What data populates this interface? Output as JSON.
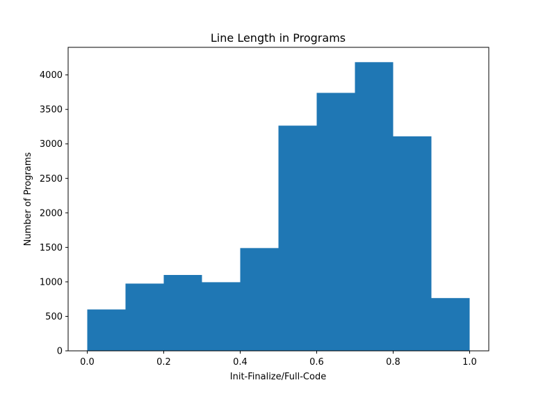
{
  "chart_data": {
    "type": "bar",
    "title": "Line Length in Programs",
    "xlabel": "Init-Finalize/Full-Code",
    "ylabel": "Number of Programs",
    "bin_edges": [
      0.0,
      0.1,
      0.2,
      0.3,
      0.4,
      0.5,
      0.6,
      0.7,
      0.8,
      0.9,
      1.0
    ],
    "values": [
      600,
      975,
      1100,
      995,
      1490,
      3265,
      3740,
      4185,
      3110,
      765
    ],
    "xlim": [
      -0.05,
      1.05
    ],
    "ylim": [
      0,
      4400
    ],
    "xticks": [
      0.0,
      0.2,
      0.4,
      0.6,
      0.8,
      1.0
    ],
    "xtick_labels": [
      "0.0",
      "0.2",
      "0.4",
      "0.6",
      "0.8",
      "1.0"
    ],
    "yticks": [
      0,
      500,
      1000,
      1500,
      2000,
      2500,
      3000,
      3500,
      4000
    ],
    "ytick_labels": [
      "0",
      "500",
      "1000",
      "1500",
      "2000",
      "2500",
      "3000",
      "3500",
      "4000"
    ],
    "bar_color": "#1f77b4",
    "grid": false
  }
}
